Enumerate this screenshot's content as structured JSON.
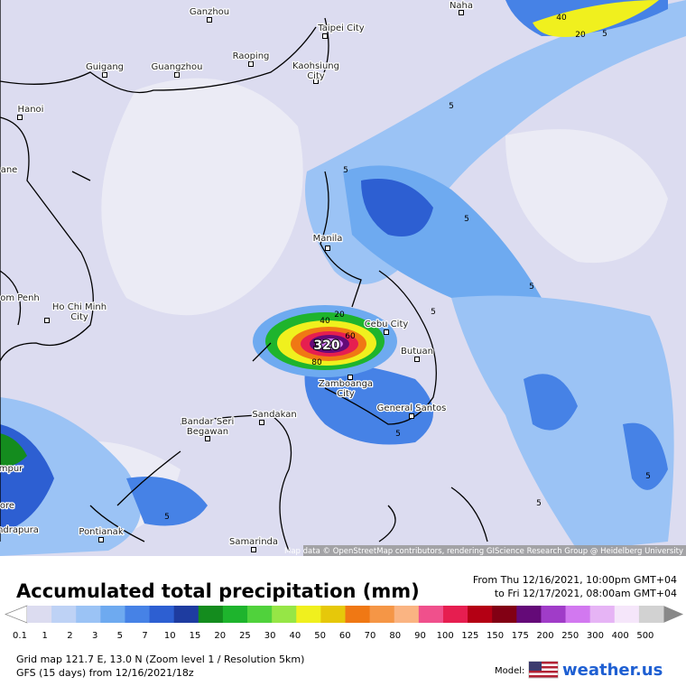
{
  "map": {
    "cities": [
      {
        "lines": [
          "Ganzhou"
        ]
      },
      {
        "lines": [
          "Naha"
        ]
      },
      {
        "lines": [
          "Taipei City"
        ]
      },
      {
        "lines": [
          "Guigang"
        ]
      },
      {
        "lines": [
          "Guangzhou"
        ]
      },
      {
        "lines": [
          "Raoping"
        ]
      },
      {
        "lines": [
          "Kaohsiung",
          "City"
        ]
      },
      {
        "lines": [
          "Hanoi"
        ]
      },
      {
        "lines": [
          "Manila"
        ]
      },
      {
        "lines": [
          "om Penh"
        ]
      },
      {
        "lines": [
          "Ho Chi Minh",
          "City"
        ]
      },
      {
        "lines": [
          "Cebu City"
        ]
      },
      {
        "lines": [
          "Butuan"
        ]
      },
      {
        "lines": [
          "Zamboanga",
          "City"
        ]
      },
      {
        "lines": [
          "General Santos"
        ]
      },
      {
        "lines": [
          "Bandar Seri",
          "Begawan"
        ]
      },
      {
        "lines": [
          "Sandakan"
        ]
      },
      {
        "lines": [
          "Pontianak"
        ]
      },
      {
        "lines": [
          "Samarinda"
        ]
      },
      {
        "lines": [
          "ane"
        ]
      },
      {
        "lines": [
          "mpur"
        ]
      },
      {
        "lines": [
          "ore"
        ]
      },
      {
        "lines": [
          "ndrapura"
        ]
      }
    ],
    "contour_labels": [
      40,
      20,
      5,
      5,
      5,
      5,
      5,
      5,
      40,
      20,
      320,
      60,
      80,
      5,
      5,
      5,
      5
    ],
    "attribution": "Map data © OpenStreetMap contributors, rendering GIScience Research Group @ Heidelberg University"
  },
  "header": {
    "title": "Accumulated total precipitation (mm)",
    "from": "From Thu 12/16/2021, 10:00pm GMT+04",
    "to": "to Fri 12/17/2021, 08:00am GMT+04"
  },
  "legend": {
    "items": [
      {
        "value": 0.1,
        "color": "#dcdcf0"
      },
      {
        "value": 1,
        "color": "#bed2f5"
      },
      {
        "value": 2,
        "color": "#9bc3f5"
      },
      {
        "value": 3,
        "color": "#6eaaf0"
      },
      {
        "value": 5,
        "color": "#4682e6"
      },
      {
        "value": 7,
        "color": "#2d5fd2"
      },
      {
        "value": 10,
        "color": "#1e3ca0"
      },
      {
        "value": 15,
        "color": "#148c1e"
      },
      {
        "value": 20,
        "color": "#1eb42d"
      },
      {
        "value": 25,
        "color": "#50d23c"
      },
      {
        "value": 30,
        "color": "#96e646"
      },
      {
        "value": 40,
        "color": "#f0f01e"
      },
      {
        "value": 50,
        "color": "#e6c80a"
      },
      {
        "value": 60,
        "color": "#f07814"
      },
      {
        "value": 70,
        "color": "#f59646"
      },
      {
        "value": 80,
        "color": "#fab482"
      },
      {
        "value": 90,
        "color": "#f0508c"
      },
      {
        "value": 100,
        "color": "#e61e50"
      },
      {
        "value": 125,
        "color": "#b40014"
      },
      {
        "value": 150,
        "color": "#820014"
      },
      {
        "value": 175,
        "color": "#640a78"
      },
      {
        "value": 200,
        "color": "#a03cc8"
      },
      {
        "value": 250,
        "color": "#d278f0"
      },
      {
        "value": 300,
        "color": "#e6b4f5"
      },
      {
        "value": 400,
        "color": "#f5e6fa"
      },
      {
        "value": 500,
        "color": "#d2d2d2"
      }
    ]
  },
  "footer": {
    "grid": "Grid map 121.7 E, 13.0 N (Zoom level 1 / Resolution 5km)",
    "run": "GFS (15 days) from  12/16/2021/18z",
    "model_label": "Model:",
    "brand": "weather.us"
  }
}
